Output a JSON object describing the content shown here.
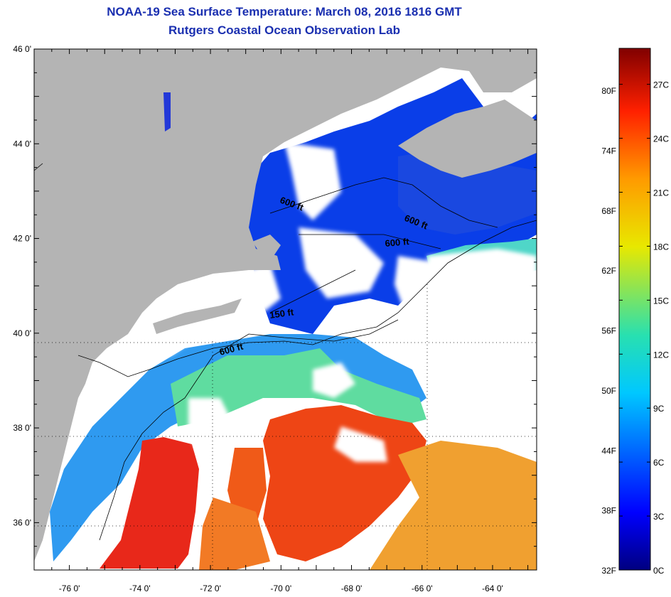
{
  "header": {
    "title": "NOAA-19 Sea Surface Temperature:  March 08, 2016 1816 GMT",
    "subtitle": "Rutgers Coastal Ocean Observation Lab"
  },
  "map": {
    "lat_range": [
      35,
      46
    ],
    "lon_range": [
      -77,
      -62.75
    ],
    "lat_ticks": [
      {
        "value": 46,
        "label": "46 0'"
      },
      {
        "value": 44,
        "label": "44 0'"
      },
      {
        "value": 42,
        "label": "42 0'"
      },
      {
        "value": 40,
        "label": "40 0'"
      },
      {
        "value": 38,
        "label": "38 0'"
      },
      {
        "value": 36,
        "label": "36 0'"
      }
    ],
    "lon_ticks": [
      {
        "value": -76,
        "label": "-76 0'"
      },
      {
        "value": -74,
        "label": "-74 0'"
      },
      {
        "value": -72,
        "label": "-72 0'"
      },
      {
        "value": -70,
        "label": "-70 0'"
      },
      {
        "value": -68,
        "label": "-68 0'"
      },
      {
        "value": -66,
        "label": "-66 0'"
      },
      {
        "value": -64,
        "label": "-64 0'"
      }
    ],
    "contour_labels": [
      "600 ft",
      "600 ft",
      "600 ft",
      "150 ft",
      "600 ft"
    ],
    "colors": {
      "land": "#b4b4b4",
      "cloud": "#ffffff",
      "cold_water": "#0a32e6",
      "warm_water": "#ee3a10"
    }
  },
  "colorbar": {
    "fahrenheit": [
      "80F",
      "74F",
      "68F",
      "62F",
      "56F",
      "50F",
      "44F",
      "38F",
      "32F"
    ],
    "celsius": [
      "27C",
      "24C",
      "21C",
      "18C",
      "15C",
      "12C",
      "9C",
      "6C",
      "3C",
      "0C"
    ],
    "range_c": [
      0,
      29
    ]
  }
}
